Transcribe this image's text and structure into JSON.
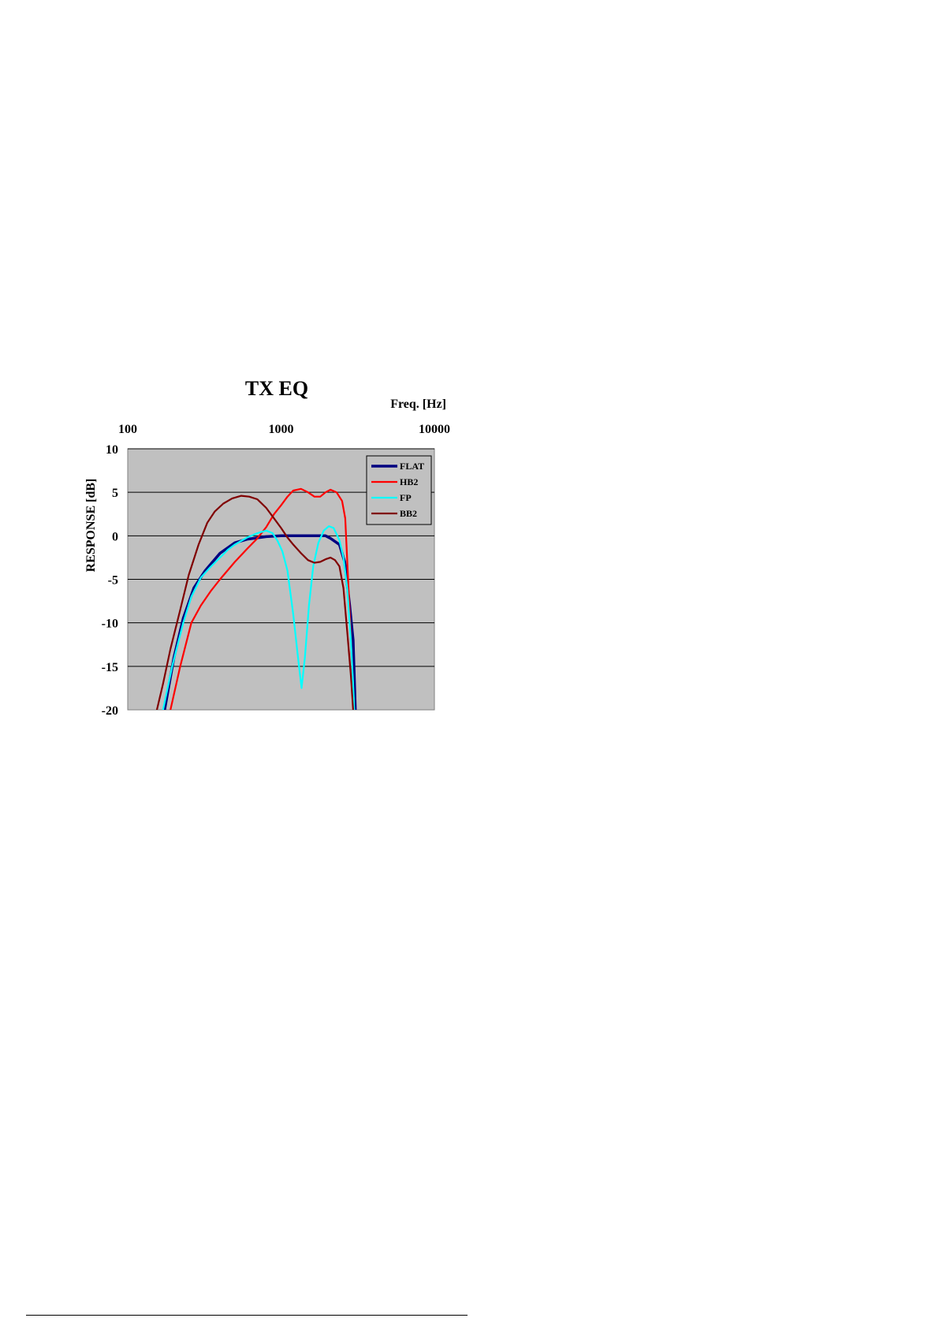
{
  "chart_data": {
    "type": "line",
    "title": "TX EQ",
    "xlabel": "Freq. [Hz]",
    "ylabel": "RESPONSE [dB]",
    "x_scale": "log",
    "xlim": [
      100,
      10000
    ],
    "ylim": [
      -20,
      10
    ],
    "x_ticks": [
      100,
      1000,
      10000
    ],
    "x_tick_labels": [
      "100",
      "1000",
      "10000"
    ],
    "y_ticks": [
      10,
      5,
      0,
      -5,
      -10,
      -15,
      -20
    ],
    "y_tick_labels": [
      "10",
      "5",
      "0",
      "-5",
      "-10",
      "-15",
      "-20"
    ],
    "x_axis_position": "top",
    "grid": "horizontal",
    "plot_background": "#c0c0c0",
    "legend_position": "top-right",
    "series": [
      {
        "name": "FLAT",
        "color": "#000080",
        "points": [
          [
            174,
            -20
          ],
          [
            200,
            -14
          ],
          [
            230,
            -9.5
          ],
          [
            270,
            -6
          ],
          [
            320,
            -4
          ],
          [
            400,
            -2
          ],
          [
            500,
            -0.8
          ],
          [
            600,
            -0.4
          ],
          [
            800,
            -0.1
          ],
          [
            1000,
            0
          ],
          [
            1500,
            0
          ],
          [
            1950,
            0
          ],
          [
            2100,
            -0.3
          ],
          [
            2400,
            -1
          ],
          [
            2600,
            -3
          ],
          [
            2800,
            -8
          ],
          [
            2950,
            -12
          ],
          [
            3050,
            -20
          ]
        ]
      },
      {
        "name": "HB2",
        "color": "#ff0000",
        "points": [
          [
            190,
            -20
          ],
          [
            220,
            -15
          ],
          [
            260,
            -10
          ],
          [
            300,
            -8
          ],
          [
            350,
            -6.3
          ],
          [
            400,
            -5
          ],
          [
            500,
            -3
          ],
          [
            600,
            -1.5
          ],
          [
            700,
            -0.3
          ],
          [
            800,
            1
          ],
          [
            900,
            2.5
          ],
          [
            1000,
            3.5
          ],
          [
            1100,
            4.5
          ],
          [
            1200,
            5.2
          ],
          [
            1350,
            5.4
          ],
          [
            1500,
            5
          ],
          [
            1650,
            4.5
          ],
          [
            1800,
            4.5
          ],
          [
            1950,
            5
          ],
          [
            2100,
            5.3
          ],
          [
            2300,
            5
          ],
          [
            2500,
            4
          ],
          [
            2620,
            2
          ],
          [
            2720,
            -4
          ],
          [
            2820,
            -10
          ],
          [
            2920,
            -16
          ],
          [
            3000,
            -20
          ]
        ]
      },
      {
        "name": "FP",
        "color": "#00ffff",
        "points": [
          [
            170,
            -20
          ],
          [
            195,
            -15
          ],
          [
            230,
            -10
          ],
          [
            260,
            -7
          ],
          [
            300,
            -4.8
          ],
          [
            350,
            -3.5
          ],
          [
            400,
            -2.5
          ],
          [
            450,
            -1.6
          ],
          [
            500,
            -1
          ],
          [
            600,
            -0.2
          ],
          [
            700,
            0.3
          ],
          [
            800,
            0.6
          ],
          [
            880,
            0.3
          ],
          [
            950,
            -0.6
          ],
          [
            1020,
            -1.8
          ],
          [
            1100,
            -4
          ],
          [
            1200,
            -9
          ],
          [
            1290,
            -14
          ],
          [
            1360,
            -17.5
          ],
          [
            1430,
            -14
          ],
          [
            1520,
            -8
          ],
          [
            1620,
            -3.5
          ],
          [
            1750,
            -0.8
          ],
          [
            1900,
            0.6
          ],
          [
            2050,
            1.1
          ],
          [
            2200,
            0.9
          ],
          [
            2400,
            -0.5
          ],
          [
            2550,
            -2.5
          ],
          [
            2700,
            -6
          ],
          [
            2850,
            -12
          ],
          [
            2950,
            -17
          ],
          [
            3000,
            -20
          ]
        ]
      },
      {
        "name": "BB2",
        "color": "#800000",
        "points": [
          [
            155,
            -20
          ],
          [
            170,
            -17
          ],
          [
            190,
            -13
          ],
          [
            220,
            -8.5
          ],
          [
            250,
            -4.5
          ],
          [
            290,
            -1
          ],
          [
            330,
            1.5
          ],
          [
            370,
            2.8
          ],
          [
            420,
            3.7
          ],
          [
            480,
            4.3
          ],
          [
            550,
            4.6
          ],
          [
            620,
            4.5
          ],
          [
            700,
            4.2
          ],
          [
            800,
            3.2
          ],
          [
            900,
            2
          ],
          [
            1000,
            0.9
          ],
          [
            1100,
            -0.2
          ],
          [
            1200,
            -1
          ],
          [
            1350,
            -2
          ],
          [
            1500,
            -2.8
          ],
          [
            1650,
            -3.1
          ],
          [
            1800,
            -3
          ],
          [
            1950,
            -2.7
          ],
          [
            2100,
            -2.5
          ],
          [
            2250,
            -2.8
          ],
          [
            2400,
            -3.5
          ],
          [
            2550,
            -6
          ],
          [
            2700,
            -11
          ],
          [
            2850,
            -16
          ],
          [
            2950,
            -20
          ]
        ]
      }
    ]
  }
}
